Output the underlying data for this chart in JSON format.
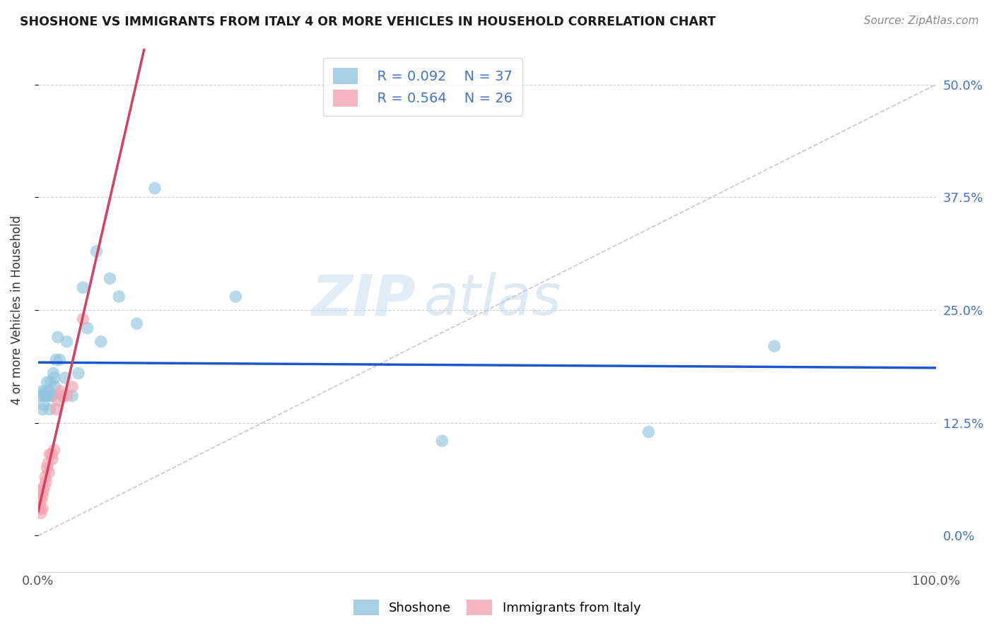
{
  "title": "SHOSHONE VS IMMIGRANTS FROM ITALY 4 OR MORE VEHICLES IN HOUSEHOLD CORRELATION CHART",
  "source": "Source: ZipAtlas.com",
  "ylabel": "4 or more Vehicles in Household",
  "xmin": 0.0,
  "xmax": 1.0,
  "ymin": -0.04,
  "ymax": 0.54,
  "legend_blue_r": "R = 0.092",
  "legend_blue_n": "N = 37",
  "legend_pink_r": "R = 0.564",
  "legend_pink_n": "N = 26",
  "blue_color": "#92c5de",
  "pink_color": "#f4a4b0",
  "line_blue_color": "#1a56cc",
  "line_pink_color": "#d44060",
  "diagonal_color": "#c8c8c8",
  "watermark_zip": "ZIP",
  "watermark_atlas": "atlas",
  "shoshone_x": [
    0.003,
    0.004,
    0.005,
    0.006,
    0.007,
    0.008,
    0.009,
    0.01,
    0.011,
    0.012,
    0.013,
    0.014,
    0.015,
    0.016,
    0.017,
    0.018,
    0.019,
    0.02,
    0.022,
    0.024,
    0.026,
    0.03,
    0.032,
    0.038,
    0.045,
    0.05,
    0.055,
    0.065,
    0.07,
    0.08,
    0.09,
    0.11,
    0.13,
    0.22,
    0.45,
    0.68,
    0.82
  ],
  "shoshone_y": [
    0.155,
    0.16,
    0.14,
    0.145,
    0.155,
    0.16,
    0.155,
    0.17,
    0.155,
    0.16,
    0.14,
    0.17,
    0.155,
    0.155,
    0.18,
    0.175,
    0.165,
    0.195,
    0.22,
    0.195,
    0.155,
    0.175,
    0.215,
    0.155,
    0.18,
    0.275,
    0.23,
    0.315,
    0.215,
    0.285,
    0.265,
    0.235,
    0.385,
    0.265,
    0.105,
    0.115,
    0.21
  ],
  "italy_x": [
    0.001,
    0.002,
    0.002,
    0.003,
    0.003,
    0.004,
    0.005,
    0.005,
    0.006,
    0.007,
    0.008,
    0.009,
    0.01,
    0.011,
    0.012,
    0.013,
    0.015,
    0.016,
    0.018,
    0.02,
    0.022,
    0.025,
    0.028,
    0.032,
    0.038,
    0.05
  ],
  "italy_y": [
    0.035,
    0.03,
    0.04,
    0.025,
    0.05,
    0.04,
    0.03,
    0.045,
    0.05,
    0.055,
    0.065,
    0.06,
    0.075,
    0.08,
    0.07,
    0.09,
    0.09,
    0.085,
    0.095,
    0.14,
    0.15,
    0.16,
    0.155,
    0.155,
    0.165,
    0.24
  ],
  "yticks": [
    0.0,
    0.125,
    0.25,
    0.375,
    0.5
  ],
  "ytick_labels_right": [
    "0.0%",
    "12.5%",
    "25.0%",
    "37.5%",
    "50.0%"
  ],
  "xtick_vals": [
    0.0,
    0.25,
    0.5,
    0.75,
    1.0
  ],
  "xtick_labels": [
    "0.0%",
    "",
    "",
    "",
    "100.0%"
  ]
}
